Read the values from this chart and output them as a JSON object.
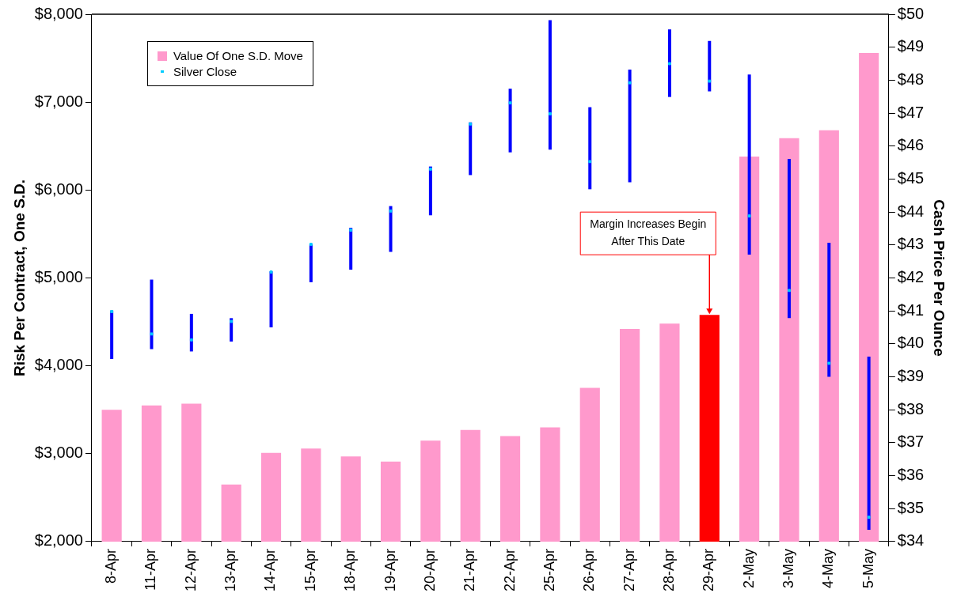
{
  "chart_data": {
    "type": "bar",
    "categories": [
      "8-Apr",
      "11-Apr",
      "12-Apr",
      "13-Apr",
      "14-Apr",
      "15-Apr",
      "18-Apr",
      "19-Apr",
      "20-Apr",
      "21-Apr",
      "22-Apr",
      "25-Apr",
      "26-Apr",
      "27-Apr",
      "28-Apr",
      "29-Apr",
      "2-May",
      "3-May",
      "4-May",
      "5-May"
    ],
    "series": [
      {
        "name": "Value Of One S.D. Move",
        "color": "#ff99cc",
        "colors": [
          "#ff99cc",
          "#ff99cc",
          "#ff99cc",
          "#ff99cc",
          "#ff99cc",
          "#ff99cc",
          "#ff99cc",
          "#ff99cc",
          "#ff99cc",
          "#ff99cc",
          "#ff99cc",
          "#ff99cc",
          "#ff99cc",
          "#ff99cc",
          "#ff99cc",
          "#ff0000",
          "#ff99cc",
          "#ff99cc",
          "#ff99cc",
          "#ff99cc"
        ],
        "values": [
          3500,
          3550,
          3570,
          2650,
          3010,
          3060,
          2970,
          2910,
          3150,
          3270,
          3200,
          3300,
          3750,
          4420,
          4480,
          4580,
          6380,
          6590,
          6680,
          7560
        ]
      },
      {
        "name": "Silver Close",
        "type": "scatter",
        "axis": "y2",
        "color": "#00ccff",
        "values": [
          40.98,
          40.3,
          40.12,
          40.68,
          42.18,
          43.02,
          43.45,
          44.03,
          45.3,
          46.67,
          47.31,
          46.98,
          45.53,
          47.92,
          48.5,
          47.97,
          43.88,
          41.62,
          39.41,
          34.74
        ],
        "errors": [
          [
            39.54,
            41.01
          ],
          [
            39.84,
            41.95
          ],
          [
            39.77,
            40.91
          ],
          [
            40.07,
            40.78
          ],
          [
            40.5,
            42.2
          ],
          [
            41.87,
            43.02
          ],
          [
            42.25,
            43.52
          ],
          [
            42.79,
            44.18
          ],
          [
            43.9,
            45.38
          ],
          [
            45.12,
            46.72
          ],
          [
            45.81,
            47.74
          ],
          [
            45.89,
            49.82
          ],
          [
            44.69,
            47.18
          ],
          [
            44.9,
            48.32
          ],
          [
            47.49,
            49.54
          ],
          [
            47.66,
            49.19
          ],
          [
            42.71,
            48.17
          ],
          [
            40.78,
            45.61
          ],
          [
            39.0,
            43.07
          ],
          [
            34.36,
            39.61
          ]
        ]
      }
    ],
    "ylabel": "Risk Per Contract, One S.D.",
    "y2label": "Cash Price Per Ounce",
    "ylim": [
      2000,
      8000
    ],
    "yticks": [
      {
        "value": 2000,
        "label": "$2,000"
      },
      {
        "value": 3000,
        "label": "$3,000"
      },
      {
        "value": 4000,
        "label": "$4,000"
      },
      {
        "value": 5000,
        "label": "$5,000"
      },
      {
        "value": 6000,
        "label": "$6,000"
      },
      {
        "value": 7000,
        "label": "$7,000"
      },
      {
        "value": 8000,
        "label": "$8,000"
      }
    ],
    "y2lim": [
      34,
      50
    ],
    "y2ticks": [
      {
        "value": 34,
        "label": "$34"
      },
      {
        "value": 35,
        "label": "$35"
      },
      {
        "value": 36,
        "label": "$36"
      },
      {
        "value": 37,
        "label": "$37"
      },
      {
        "value": 38,
        "label": "$38"
      },
      {
        "value": 39,
        "label": "$39"
      },
      {
        "value": 40,
        "label": "$40"
      },
      {
        "value": 41,
        "label": "$41"
      },
      {
        "value": 42,
        "label": "$42"
      },
      {
        "value": 43,
        "label": "$43"
      },
      {
        "value": 44,
        "label": "$44"
      },
      {
        "value": 45,
        "label": "$45"
      },
      {
        "value": 46,
        "label": "$46"
      },
      {
        "value": 47,
        "label": "$47"
      },
      {
        "value": 48,
        "label": "$48"
      },
      {
        "value": 49,
        "label": "$49"
      },
      {
        "value": 50,
        "label": "$50"
      }
    ],
    "grid": false,
    "legend": "top left",
    "marker": "square",
    "annotations": [
      {
        "text": "Margin Increases Begin After This Date",
        "x": "29-Apr",
        "y": 4580
      }
    ]
  }
}
